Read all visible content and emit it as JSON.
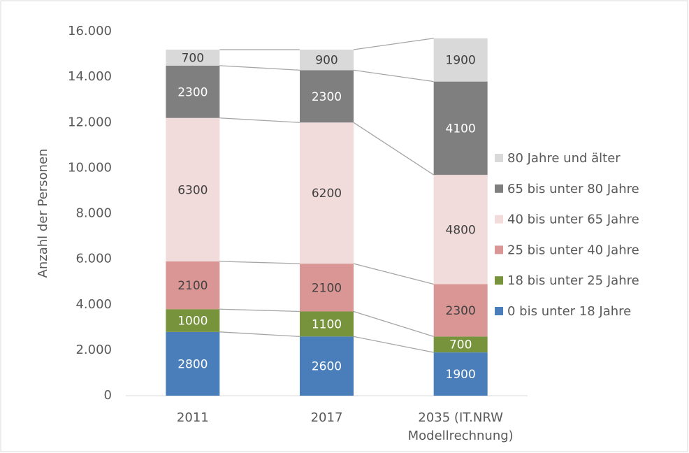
{
  "chart_data": {
    "type": "stacked_bar",
    "y_label": "Anzahl der Personen",
    "categories": [
      "2011",
      "2017",
      "2035 (IT.NRW Modellrechnung)"
    ],
    "series": [
      {
        "name": "0 bis unter 18 Jahre",
        "color": "#4a7ebb",
        "values": [
          2800,
          2600,
          1900
        ]
      },
      {
        "name": "18 bis unter 25 Jahre",
        "color": "#77933c",
        "values": [
          1000,
          1100,
          700
        ]
      },
      {
        "name": "25 bis unter 40 Jahre",
        "color": "#d99694",
        "values": [
          2100,
          2100,
          2300
        ]
      },
      {
        "name": "40 bis unter 65 Jahre",
        "color": "#f2dcdb",
        "values": [
          6300,
          6200,
          4800
        ]
      },
      {
        "name": "65 bis unter 80 Jahre",
        "color": "#7f7f7f",
        "values": [
          2300,
          2300,
          4100
        ]
      },
      {
        "name": "80 Jahre und älter",
        "color": "#d9d9d9",
        "values": [
          700,
          900,
          1900
        ]
      }
    ],
    "ylim": [
      0,
      16000
    ],
    "yticks": [
      0,
      {
        "value": 2000,
        "label": "2.000"
      },
      {
        "value": 4000,
        "label": "4.000"
      },
      {
        "value": 6000,
        "label": "6.000"
      },
      {
        "value": 8000,
        "label": "8.000"
      },
      {
        "value": 10000,
        "label": "10.000"
      },
      {
        "value": 12000,
        "label": "12.000"
      },
      {
        "value": 14000,
        "label": "14.000"
      },
      {
        "value": 16000,
        "label": "16.000"
      }
    ],
    "legend": "right",
    "series_lines": true
  }
}
